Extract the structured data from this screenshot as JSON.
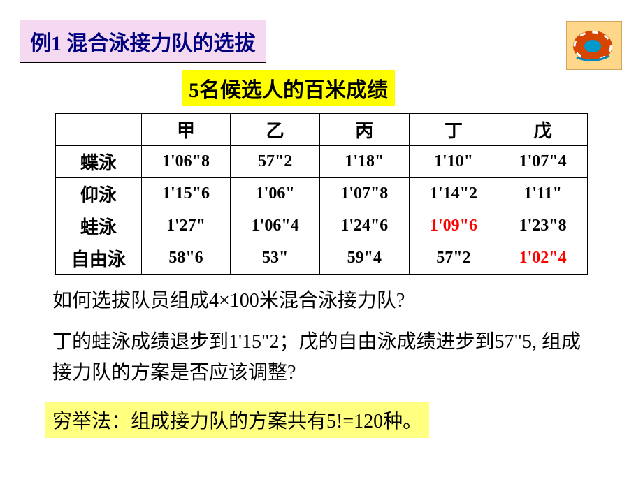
{
  "title": "例1  混合泳接力队的选拔",
  "subtitle": "5名候选人的百米成绩",
  "icon": {
    "name": "life-ring-icon",
    "bg": "#ffcc66",
    "outer": "#cc4400",
    "inner": "#ffffff"
  },
  "table": {
    "columns": [
      "",
      "甲",
      "乙",
      "丙",
      "丁",
      "戊"
    ],
    "rows": [
      {
        "label": "蝶泳",
        "cells": [
          {
            "v": "1'06\"8",
            "c": "#000"
          },
          {
            "v": "57\"2",
            "c": "#000"
          },
          {
            "v": "1'18\"",
            "c": "#000"
          },
          {
            "v": "1'10\"",
            "c": "#000"
          },
          {
            "v": "1'07\"4",
            "c": "#000"
          }
        ]
      },
      {
        "label": "仰泳",
        "cells": [
          {
            "v": "1'15\"6",
            "c": "#000"
          },
          {
            "v": "1'06\"",
            "c": "#000"
          },
          {
            "v": "1'07\"8",
            "c": "#000"
          },
          {
            "v": "1'14\"2",
            "c": "#000"
          },
          {
            "v": "1'11\"",
            "c": "#000"
          }
        ]
      },
      {
        "label": "蛙泳",
        "cells": [
          {
            "v": "1'27\"",
            "c": "#000"
          },
          {
            "v": "1'06\"4",
            "c": "#000"
          },
          {
            "v": "1'24\"6",
            "c": "#000"
          },
          {
            "v": "1'09\"6",
            "c": "#ff0000"
          },
          {
            "v": "1'23\"8",
            "c": "#000"
          }
        ]
      },
      {
        "label": "自由泳",
        "cells": [
          {
            "v": "58\"6",
            "c": "#000"
          },
          {
            "v": "53\"",
            "c": "#000"
          },
          {
            "v": "59\"4",
            "c": "#000"
          },
          {
            "v": "57\"2",
            "c": "#000"
          },
          {
            "v": "1'02\"4",
            "c": "#ff0000"
          }
        ]
      }
    ],
    "col_widths": [
      "130",
      "126",
      "126",
      "126",
      "126",
      "126"
    ]
  },
  "question1_pre": "如何选拔队员组成",
  "question1_mid": "4×100",
  "question1_post": "米混合泳接力队?",
  "question2_a": "丁的蛙泳成绩退步到",
  "question2_b": "1'15\"2",
  "question2_c": "；戊的自由泳成绩进步到",
  "question2_d": "57\"5, ",
  "question2_e": "组成接力队的方案是否应该调整?",
  "bottom_a": "穷举法：组成接力队的方案共有",
  "bottom_b": "5!=120",
  "bottom_c": "种。"
}
